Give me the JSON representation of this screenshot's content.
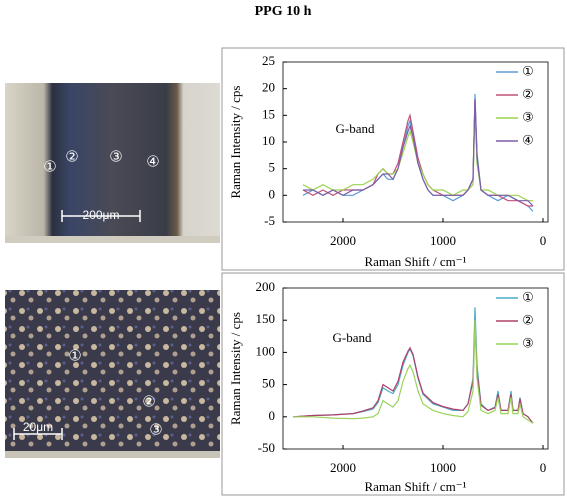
{
  "title": "PPG 10 h",
  "images": [
    {
      "labels": [
        "①",
        "②",
        "③",
        "④"
      ],
      "scale_bar": "200μm"
    },
    {
      "labels": [
        "①",
        "②",
        "③"
      ],
      "scale_bar": "20μm"
    }
  ],
  "chart_data": [
    {
      "type": "line",
      "x_label": "Raman Shift / cm⁻¹",
      "y_label": "Raman Intensity / cps",
      "annotation": "G-band",
      "x": [
        2400,
        2300,
        2200,
        2100,
        2000,
        1900,
        1800,
        1700,
        1650,
        1600,
        1550,
        1500,
        1450,
        1400,
        1350,
        1330,
        1300,
        1250,
        1200,
        1150,
        1100,
        1000,
        900,
        800,
        750,
        700,
        680,
        660,
        620,
        550,
        450,
        350,
        250,
        150,
        100
      ],
      "series": [
        {
          "name": "①",
          "color": "#5b9bd5",
          "values": [
            0,
            1,
            0,
            1,
            0,
            0,
            1,
            2,
            3,
            4,
            3,
            3,
            5,
            9,
            13,
            14,
            11,
            6,
            3,
            1,
            0,
            0,
            -1,
            0,
            1,
            3,
            19,
            8,
            1,
            0,
            -1,
            0,
            -1,
            -2,
            -3
          ]
        },
        {
          "name": "②",
          "color": "#c0507a",
          "values": [
            1,
            0,
            1,
            0,
            1,
            1,
            1,
            2,
            4,
            5,
            4,
            4,
            6,
            10,
            14,
            15,
            12,
            7,
            4,
            2,
            1,
            0,
            0,
            0,
            1,
            3,
            18,
            7,
            1,
            0,
            0,
            -1,
            -1,
            -2,
            -2
          ]
        },
        {
          "name": "③",
          "color": "#9bd34d",
          "values": [
            2,
            1,
            2,
            1,
            1,
            2,
            2,
            3,
            4,
            5,
            4,
            4,
            5,
            8,
            11,
            12,
            10,
            6,
            4,
            2,
            1,
            1,
            0,
            1,
            1,
            2,
            16,
            6,
            1,
            1,
            0,
            0,
            0,
            -1,
            -1
          ]
        },
        {
          "name": "④",
          "color": "#7b5ea7",
          "values": [
            1,
            1,
            0,
            1,
            0,
            1,
            1,
            2,
            3,
            4,
            4,
            3,
            5,
            9,
            12,
            13,
            11,
            6,
            3,
            1,
            0,
            0,
            0,
            0,
            1,
            3,
            18,
            7,
            1,
            0,
            0,
            0,
            -1,
            -1,
            -2
          ]
        }
      ],
      "xlim": [
        2600,
        -50
      ],
      "xticks": [
        2000,
        1000,
        0
      ],
      "ylim": [
        -5,
        25
      ],
      "yticks": [
        -5,
        0,
        5,
        10,
        15,
        20,
        25
      ],
      "legend": "upper right"
    },
    {
      "type": "line",
      "x_label": "Raman Shift / cm⁻¹",
      "y_label": "Raman Intensity / cps",
      "annotation": "G-band",
      "x": [
        2500,
        2300,
        2100,
        1900,
        1800,
        1700,
        1650,
        1600,
        1550,
        1500,
        1450,
        1400,
        1350,
        1330,
        1300,
        1250,
        1200,
        1100,
        1000,
        900,
        800,
        750,
        700,
        680,
        660,
        620,
        550,
        480,
        450,
        420,
        350,
        320,
        300,
        250,
        230,
        200,
        150,
        100
      ],
      "series": [
        {
          "name": "①",
          "color": "#4bacc6",
          "values": [
            0,
            2,
            3,
            5,
            8,
            12,
            22,
            45,
            40,
            36,
            50,
            80,
            100,
            105,
            95,
            60,
            35,
            20,
            15,
            10,
            10,
            20,
            60,
            170,
            80,
            20,
            10,
            15,
            40,
            10,
            10,
            40,
            10,
            10,
            30,
            5,
            0,
            -10
          ]
        },
        {
          "name": "②",
          "color": "#b0406a",
          "values": [
            0,
            2,
            3,
            5,
            9,
            14,
            25,
            50,
            45,
            40,
            55,
            85,
            102,
            107,
            97,
            62,
            37,
            22,
            16,
            12,
            10,
            20,
            55,
            145,
            70,
            18,
            10,
            14,
            35,
            10,
            10,
            35,
            10,
            10,
            28,
            5,
            0,
            -10
          ]
        },
        {
          "name": "③",
          "color": "#9ad25a",
          "values": [
            0,
            0,
            -2,
            -3,
            -2,
            0,
            5,
            25,
            20,
            15,
            25,
            55,
            75,
            80,
            70,
            40,
            20,
            10,
            5,
            2,
            0,
            8,
            40,
            150,
            60,
            10,
            5,
            10,
            30,
            5,
            5,
            30,
            5,
            5,
            20,
            0,
            -5,
            -10
          ]
        }
      ],
      "xlim": [
        2600,
        -50
      ],
      "xticks": [
        2000,
        1000,
        0
      ],
      "ylim": [
        -50,
        200
      ],
      "yticks": [
        -50,
        0,
        50,
        100,
        150,
        200
      ],
      "legend": "upper right"
    }
  ]
}
